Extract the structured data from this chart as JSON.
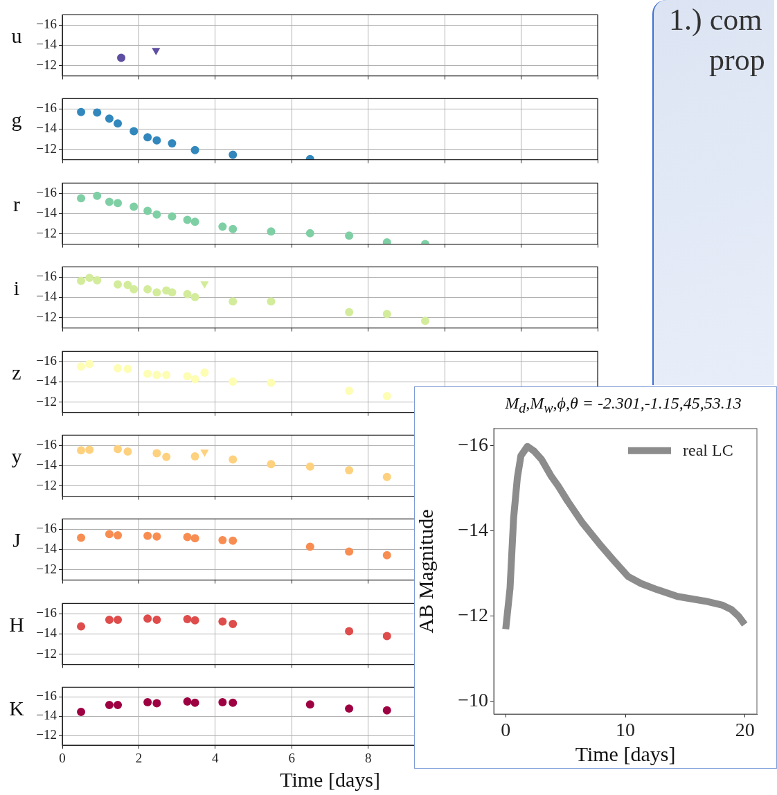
{
  "chart_data": [
    {
      "type": "scatter",
      "ylabel": "u",
      "xlim": [
        0,
        14
      ],
      "xticks": [
        0,
        2,
        4,
        6,
        8,
        10,
        12,
        14
      ],
      "ylim": [
        -11,
        -17
      ],
      "yticks": [
        -16,
        -14,
        -12
      ],
      "grid": true,
      "marker": "circle",
      "tick_labels": "y",
      "series": [
        {
          "color": "#5e4fa2",
          "x": [
            1.54
          ],
          "values": [
            -12.78
          ]
        },
        {
          "color": "#5e4fa2",
          "marker": "triangle",
          "x": [
            2.45
          ],
          "values": [
            -13.5
          ]
        }
      ]
    },
    {
      "type": "scatter",
      "ylabel": "g",
      "xlim": [
        0,
        14
      ],
      "xticks": [
        0,
        2,
        4,
        6,
        8,
        10,
        12,
        14
      ],
      "ylim": [
        -11,
        -17
      ],
      "yticks": [
        -16,
        -14,
        -12
      ],
      "grid": true,
      "marker": "circle",
      "tick_labels": "y",
      "series": [
        {
          "color": "#3288bd",
          "x": [
            0.49,
            0.91,
            1.23,
            1.45,
            1.87,
            2.23,
            2.47,
            2.87,
            3.47,
            4.46,
            6.48
          ],
          "values": [
            -15.69,
            -15.63,
            -15.04,
            -14.56,
            -13.79,
            -13.2,
            -12.9,
            -12.6,
            -11.95,
            -11.48,
            -11.05
          ]
        }
      ]
    },
    {
      "type": "scatter",
      "ylabel": "r",
      "xlim": [
        0,
        14
      ],
      "xticks": [
        0,
        2,
        4,
        6,
        8,
        10,
        12,
        14
      ],
      "ylim": [
        -11,
        -17
      ],
      "yticks": [
        -16,
        -14,
        -12
      ],
      "grid": true,
      "marker": "circle",
      "tick_labels": "y",
      "series": [
        {
          "color": "#7fcfa5",
          "x": [
            0.49,
            0.91,
            1.23,
            1.45,
            1.87,
            2.23,
            2.47,
            2.87,
            3.27,
            3.47,
            4.19,
            4.46,
            5.46,
            6.48,
            7.5,
            8.49,
            9.49
          ],
          "values": [
            -15.51,
            -15.75,
            -15.16,
            -15.04,
            -14.68,
            -14.27,
            -13.91,
            -13.73,
            -13.38,
            -13.2,
            -12.72,
            -12.49,
            -12.25,
            -12.07,
            -11.84,
            -11.18,
            -11.0
          ]
        }
      ]
    },
    {
      "type": "scatter",
      "ylabel": "i",
      "xlim": [
        0,
        14
      ],
      "xticks": [
        0,
        2,
        4,
        6,
        8,
        10,
        12,
        14
      ],
      "ylim": [
        -11,
        -17
      ],
      "yticks": [
        -16,
        -14,
        -12
      ],
      "grid": true,
      "marker": "circle",
      "tick_labels": "y",
      "series": [
        {
          "color": "#d3ec9b",
          "x": [
            0.49,
            0.71,
            0.91,
            1.45,
            1.71,
            1.87,
            2.23,
            2.47,
            2.72,
            2.87,
            3.27,
            3.47,
            4.46,
            5.46,
            7.5,
            8.49,
            9.49
          ],
          "values": [
            -15.63,
            -15.93,
            -15.69,
            -15.28,
            -15.22,
            -14.8,
            -14.8,
            -14.5,
            -14.68,
            -14.5,
            -14.33,
            -14.03,
            -13.61,
            -13.61,
            -12.55,
            -12.37,
            -11.71
          ]
        },
        {
          "color": "#d3ec9b",
          "marker": "triangle",
          "x": [
            3.72
          ],
          "values": [
            -15.34
          ]
        }
      ]
    },
    {
      "type": "scatter",
      "ylabel": "z",
      "xlim": [
        0,
        14
      ],
      "xticks": [
        0,
        2,
        4,
        6,
        8,
        10,
        12,
        14
      ],
      "ylim": [
        -11,
        -17
      ],
      "yticks": [
        -16,
        -14,
        -12
      ],
      "grid": true,
      "marker": "circle",
      "tick_labels": "y",
      "series": [
        {
          "color": "#fdfdb4",
          "x": [
            0.49,
            0.71,
            1.45,
            1.71,
            2.23,
            2.47,
            2.72,
            3.27,
            3.47,
            3.72,
            4.46,
            5.46,
            7.5,
            8.49
          ],
          "values": [
            -15.52,
            -15.75,
            -15.34,
            -15.28,
            -14.8,
            -14.68,
            -14.68,
            -14.56,
            -14.27,
            -14.92,
            -14.03,
            -13.91,
            -13.14,
            -12.6
          ]
        }
      ]
    },
    {
      "type": "scatter",
      "ylabel": "y",
      "xlim": [
        0,
        14
      ],
      "xticks": [
        0,
        2,
        4,
        6,
        8,
        10,
        12,
        14
      ],
      "ylim": [
        -11,
        -17
      ],
      "yticks": [
        -16,
        -14,
        -12
      ],
      "grid": true,
      "marker": "circle",
      "tick_labels": "y",
      "series": [
        {
          "color": "#fed17f",
          "x": [
            0.49,
            0.71,
            1.45,
            1.71,
            2.47,
            2.72,
            3.47,
            4.46,
            5.46,
            6.48,
            7.5,
            8.49
          ],
          "values": [
            -15.51,
            -15.57,
            -15.63,
            -15.4,
            -15.22,
            -14.86,
            -14.92,
            -14.62,
            -14.15,
            -13.91,
            -13.55,
            -12.9
          ]
        },
        {
          "color": "#fed17f",
          "marker": "triangle",
          "x": [
            3.72
          ],
          "values": [
            -15.34
          ]
        }
      ]
    },
    {
      "type": "scatter",
      "ylabel": "J",
      "xlim": [
        0,
        14
      ],
      "xticks": [
        0,
        2,
        4,
        6,
        8,
        10,
        12,
        14
      ],
      "ylim": [
        -11,
        -17
      ],
      "yticks": [
        -16,
        -14,
        -12
      ],
      "grid": true,
      "marker": "circle",
      "tick_labels": "y",
      "series": [
        {
          "color": "#f88d52",
          "x": [
            0.49,
            1.23,
            1.45,
            2.23,
            2.47,
            3.27,
            3.47,
            4.19,
            4.46,
            6.48,
            7.5,
            8.49
          ],
          "values": [
            -15.16,
            -15.52,
            -15.4,
            -15.34,
            -15.28,
            -15.22,
            -15.1,
            -14.92,
            -14.86,
            -14.27,
            -13.79,
            -13.44
          ]
        }
      ]
    },
    {
      "type": "scatter",
      "ylabel": "H",
      "xlim": [
        0,
        14
      ],
      "xticks": [
        0,
        2,
        4,
        6,
        8,
        10,
        12,
        14
      ],
      "ylim": [
        -11,
        -17
      ],
      "yticks": [
        -16,
        -14,
        -12
      ],
      "grid": true,
      "marker": "circle",
      "tick_labels": "y",
      "series": [
        {
          "color": "#de4c4b",
          "x": [
            0.49,
            1.23,
            1.45,
            2.23,
            2.47,
            3.27,
            3.47,
            4.19,
            4.46,
            7.5,
            8.49
          ],
          "values": [
            -14.74,
            -15.4,
            -15.4,
            -15.52,
            -15.4,
            -15.46,
            -15.34,
            -15.22,
            -14.98,
            -14.27,
            -13.79
          ]
        }
      ]
    },
    {
      "type": "scatter",
      "ylabel": "K",
      "xlabel": "Time [days]",
      "xlim": [
        0,
        14
      ],
      "xticks": [
        0,
        2,
        4,
        6,
        8
      ],
      "ylim": [
        -11,
        -17
      ],
      "yticks": [
        -16,
        -14,
        -12
      ],
      "grid": true,
      "marker": "circle",
      "series": [
        {
          "color": "#9e0142",
          "x": [
            0.49,
            1.23,
            1.45,
            2.23,
            2.47,
            3.27,
            3.47,
            4.19,
            4.46,
            6.48,
            7.5,
            8.49
          ],
          "values": [
            -14.45,
            -15.16,
            -15.16,
            -15.46,
            -15.34,
            -15.52,
            -15.4,
            -15.46,
            -15.4,
            -15.22,
            -14.8,
            -14.62
          ]
        }
      ]
    },
    {
      "type": "other",
      "annotations": [
        "1.) com",
        "prop"
      ]
    },
    {
      "type": "line",
      "title": "M$_{d}$,M$_{w}$,ϕ,θ = -2.301,-1.15,45,53.13",
      "xlabel": "Time [days]",
      "ylabel": "AB Magnitude",
      "xlim": [
        -1,
        21
      ],
      "xticks": [
        0,
        10,
        20
      ],
      "ylim": [
        -9.7,
        -16.4
      ],
      "yticks": [
        -16,
        -14,
        -12,
        -10
      ],
      "legend": "top right",
      "series": [
        {
          "name": "real LC",
          "color": "#8c8c8c",
          "x": [
            0,
            0.36,
            0.66,
            0.97,
            1.27,
            1.81,
            2.37,
            2.98,
            3.78,
            4.39,
            5.19,
            6.4,
            7.81,
            9.01,
            10.22,
            11.33,
            12.64,
            14.35,
            16.66,
            18.07,
            18.87,
            19.48,
            19.98
          ],
          "values": [
            -11.69,
            -12.65,
            -14.3,
            -15.24,
            -15.76,
            -15.98,
            -15.87,
            -15.68,
            -15.29,
            -15.05,
            -14.69,
            -14.19,
            -13.7,
            -13.31,
            -12.93,
            -12.76,
            -12.62,
            -12.46,
            -12.35,
            -12.26,
            -12.15,
            -11.99,
            -11.8
          ]
        }
      ]
    }
  ]
}
